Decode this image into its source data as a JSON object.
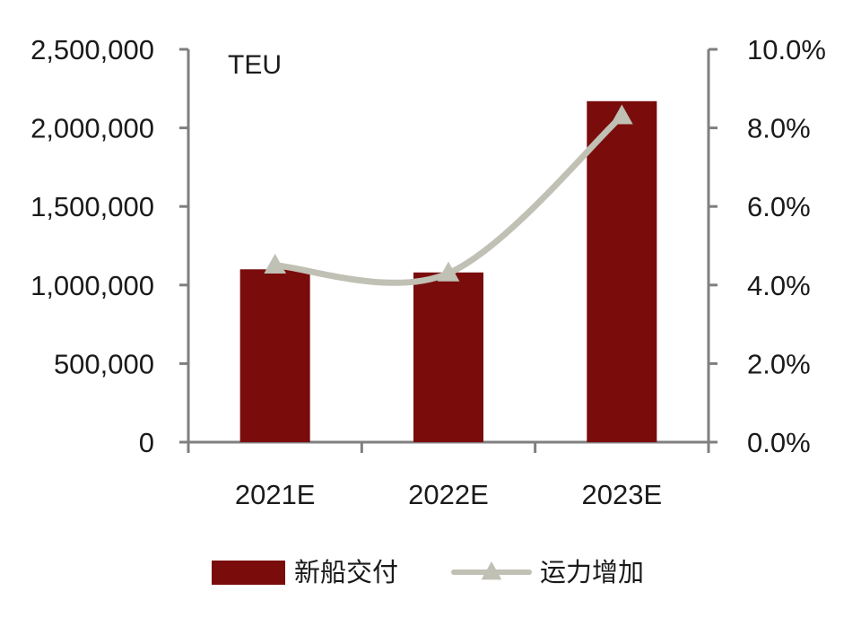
{
  "chart_data": {
    "type": "bar",
    "unit_label": "TEU",
    "categories": [
      "2021E",
      "2022E",
      "2023E"
    ],
    "series": [
      {
        "name": "新船交付",
        "type": "bar",
        "axis": "left",
        "values": [
          1100000,
          1080000,
          2170000
        ],
        "color": "#7a0c0c"
      },
      {
        "name": "运力增加",
        "type": "line",
        "axis": "right",
        "values": [
          4.5,
          4.3,
          8.3
        ],
        "color": "#c0c0b4",
        "marker": "triangle"
      }
    ],
    "y_left": {
      "ylim": [
        0,
        2500000
      ],
      "ticks": [
        "0",
        "500,000",
        "1,000,000",
        "1,500,000",
        "2,000,000",
        "2,500,000"
      ]
    },
    "y_right": {
      "ylim": [
        0,
        10
      ],
      "ticks": [
        "0.0%",
        "2.0%",
        "4.0%",
        "6.0%",
        "8.0%",
        "10.0%"
      ]
    },
    "grid": false,
    "legend_position": "bottom"
  }
}
